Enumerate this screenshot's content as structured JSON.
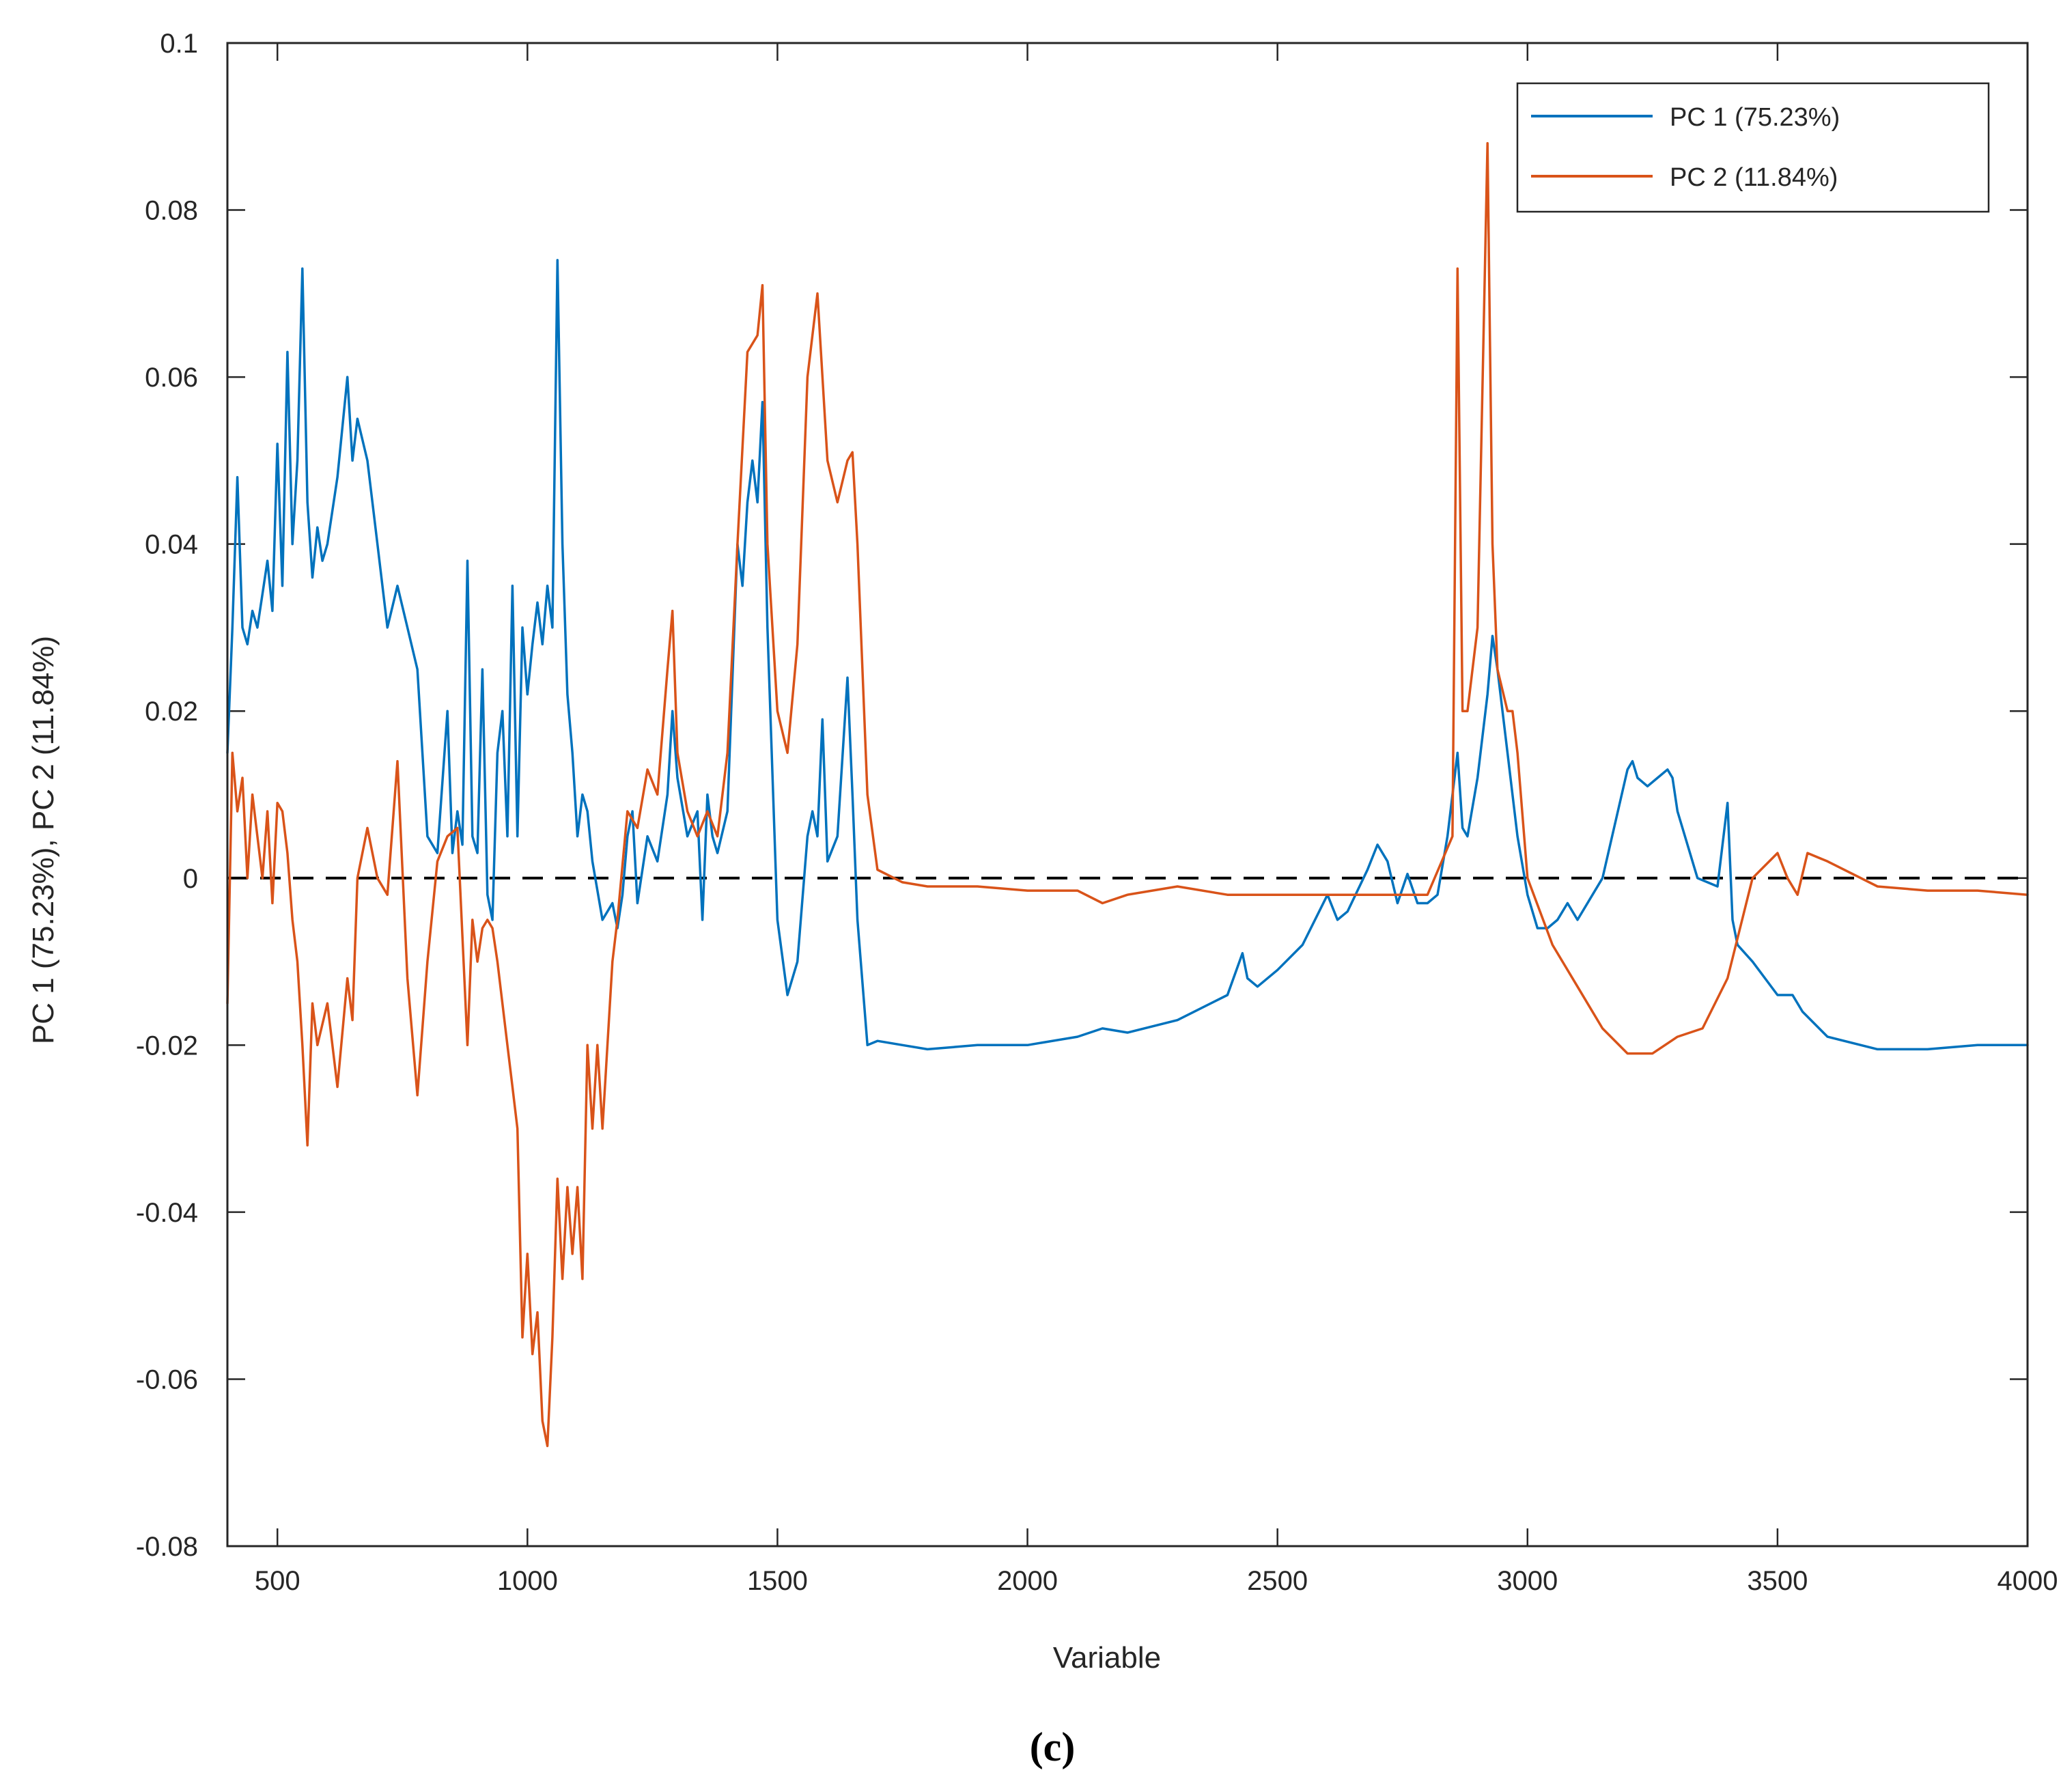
{
  "chart_data": {
    "type": "line",
    "title": "",
    "xlabel": "Variable",
    "ylabel": "PC 1 (75.23%), PC 2 (11.84%)",
    "xlim": [
      400,
      4000
    ],
    "ylim": [
      -0.08,
      0.1
    ],
    "xticks": [
      500,
      1000,
      1500,
      2000,
      2500,
      3000,
      3500,
      4000
    ],
    "yticks": [
      -0.08,
      -0.06,
      -0.04,
      -0.02,
      0,
      0.02,
      0.04,
      0.06,
      0.08,
      0.1
    ],
    "xtick_labels": [
      "500",
      "1000",
      "1500",
      "2000",
      "2500",
      "3000",
      "3500",
      "4000"
    ],
    "ytick_labels": [
      "-0.08",
      "-0.06",
      "-0.04",
      "-0.02",
      "0",
      "0.02",
      "0.04",
      "0.06",
      "0.08",
      "0.1"
    ],
    "zero_line": 0,
    "legend_position": "top-right",
    "caption": "(c)",
    "colors": {
      "pc1": "#0072BD",
      "pc2": "#D95319",
      "zero": "#000000",
      "axis": "#262626"
    },
    "series": [
      {
        "name": "PC 1 (75.23%)",
        "color": "#0072BD",
        "x": [
          400,
          410,
          420,
          430,
          440,
          450,
          460,
          470,
          480,
          490,
          500,
          510,
          520,
          530,
          540,
          550,
          560,
          570,
          580,
          590,
          600,
          620,
          640,
          650,
          660,
          680,
          700,
          720,
          740,
          760,
          780,
          800,
          820,
          840,
          850,
          860,
          870,
          880,
          890,
          900,
          910,
          920,
          930,
          940,
          950,
          960,
          970,
          980,
          990,
          1000,
          1010,
          1020,
          1030,
          1040,
          1050,
          1060,
          1070,
          1080,
          1090,
          1100,
          1110,
          1120,
          1130,
          1150,
          1170,
          1180,
          1190,
          1200,
          1210,
          1220,
          1240,
          1260,
          1280,
          1290,
          1300,
          1320,
          1340,
          1350,
          1360,
          1370,
          1380,
          1400,
          1420,
          1430,
          1440,
          1450,
          1460,
          1470,
          1480,
          1500,
          1520,
          1540,
          1560,
          1570,
          1580,
          1590,
          1600,
          1620,
          1640,
          1650,
          1660,
          1680,
          1700,
          1750,
          1800,
          1900,
          2000,
          2100,
          2150,
          2200,
          2300,
          2400,
          2430,
          2440,
          2460,
          2500,
          2550,
          2600,
          2620,
          2640,
          2680,
          2700,
          2720,
          2740,
          2760,
          2780,
          2800,
          2820,
          2840,
          2860,
          2870,
          2880,
          2900,
          2920,
          2930,
          2940,
          2960,
          2980,
          3000,
          3020,
          3040,
          3060,
          3080,
          3100,
          3150,
          3200,
          3210,
          3220,
          3240,
          3260,
          3280,
          3290,
          3300,
          3340,
          3380,
          3400,
          3410,
          3420,
          3450,
          3500,
          3530,
          3550,
          3600,
          3700,
          3800,
          3900,
          4000
        ],
        "values": [
          0.015,
          0.03,
          0.048,
          0.03,
          0.028,
          0.032,
          0.03,
          0.034,
          0.038,
          0.032,
          0.052,
          0.035,
          0.063,
          0.04,
          0.05,
          0.073,
          0.045,
          0.036,
          0.042,
          0.038,
          0.04,
          0.048,
          0.06,
          0.05,
          0.055,
          0.05,
          0.04,
          0.03,
          0.035,
          0.03,
          0.025,
          0.005,
          0.003,
          0.02,
          0.003,
          0.008,
          0.004,
          0.038,
          0.005,
          0.003,
          0.025,
          -0.002,
          -0.005,
          0.015,
          0.02,
          0.005,
          0.035,
          0.005,
          0.03,
          0.022,
          0.028,
          0.033,
          0.028,
          0.035,
          0.03,
          0.074,
          0.04,
          0.022,
          0.015,
          0.005,
          0.01,
          0.008,
          0.002,
          -0.005,
          -0.003,
          -0.006,
          -0.002,
          0.005,
          0.008,
          -0.003,
          0.005,
          0.002,
          0.01,
          0.02,
          0.012,
          0.005,
          0.008,
          -0.005,
          0.01,
          0.005,
          0.003,
          0.008,
          0.04,
          0.035,
          0.045,
          0.05,
          0.045,
          0.057,
          0.03,
          -0.005,
          -0.014,
          -0.01,
          0.005,
          0.008,
          0.005,
          0.019,
          0.002,
          0.005,
          0.024,
          0.01,
          -0.005,
          -0.02,
          -0.0195,
          -0.02,
          -0.0205,
          -0.02,
          -0.02,
          -0.019,
          -0.018,
          -0.0185,
          -0.017,
          -0.014,
          -0.009,
          -0.012,
          -0.013,
          -0.011,
          -0.008,
          -0.002,
          -0.005,
          -0.004,
          0.001,
          0.004,
          0.002,
          -0.003,
          0.0005,
          -0.003,
          -0.003,
          -0.002,
          0.005,
          0.015,
          0.006,
          0.005,
          0.012,
          0.022,
          0.029,
          0.025,
          0.015,
          0.005,
          -0.002,
          -0.006,
          -0.006,
          -0.005,
          -0.003,
          -0.005,
          0.0,
          0.013,
          0.014,
          0.012,
          0.011,
          0.012,
          0.013,
          0.012,
          0.008,
          0.0,
          -0.001,
          0.009,
          -0.005,
          -0.008,
          -0.01,
          -0.014,
          -0.014,
          -0.016,
          -0.019,
          -0.0205,
          -0.0205,
          -0.02,
          -0.02
        ]
      },
      {
        "name": "PC 2 (11.84%)",
        "color": "#D95319",
        "x": [
          400,
          410,
          420,
          430,
          440,
          450,
          460,
          470,
          480,
          490,
          500,
          510,
          520,
          530,
          540,
          550,
          560,
          570,
          580,
          600,
          620,
          640,
          650,
          660,
          680,
          700,
          720,
          740,
          760,
          780,
          800,
          820,
          840,
          860,
          880,
          890,
          900,
          910,
          920,
          930,
          940,
          950,
          960,
          970,
          980,
          990,
          1000,
          1010,
          1020,
          1030,
          1040,
          1050,
          1060,
          1070,
          1080,
          1090,
          1100,
          1110,
          1120,
          1130,
          1140,
          1150,
          1160,
          1170,
          1180,
          1200,
          1220,
          1240,
          1260,
          1280,
          1290,
          1300,
          1320,
          1340,
          1360,
          1380,
          1400,
          1420,
          1440,
          1460,
          1470,
          1480,
          1500,
          1520,
          1540,
          1560,
          1580,
          1600,
          1620,
          1640,
          1650,
          1660,
          1680,
          1700,
          1750,
          1800,
          1900,
          2000,
          2100,
          2150,
          2200,
          2300,
          2400,
          2500,
          2600,
          2700,
          2800,
          2850,
          2860,
          2870,
          2880,
          2900,
          2920,
          2930,
          2940,
          2960,
          2970,
          2980,
          3000,
          3050,
          3100,
          3150,
          3200,
          3250,
          3300,
          3350,
          3400,
          3450,
          3500,
          3520,
          3540,
          3560,
          3600,
          3700,
          3800,
          3900,
          4000
        ],
        "values": [
          -0.015,
          0.015,
          0.008,
          0.012,
          0.0,
          0.01,
          0.005,
          0.0,
          0.008,
          -0.003,
          0.009,
          0.008,
          0.003,
          -0.005,
          -0.01,
          -0.02,
          -0.032,
          -0.015,
          -0.02,
          -0.015,
          -0.025,
          -0.012,
          -0.017,
          0.0,
          0.006,
          0.0,
          -0.002,
          0.014,
          -0.012,
          -0.026,
          -0.01,
          0.002,
          0.005,
          0.006,
          -0.02,
          -0.005,
          -0.01,
          -0.006,
          -0.005,
          -0.006,
          -0.01,
          -0.015,
          -0.02,
          -0.025,
          -0.03,
          -0.055,
          -0.045,
          -0.057,
          -0.052,
          -0.065,
          -0.068,
          -0.055,
          -0.036,
          -0.048,
          -0.037,
          -0.045,
          -0.037,
          -0.048,
          -0.02,
          -0.03,
          -0.02,
          -0.03,
          -0.02,
          -0.01,
          -0.005,
          0.008,
          0.006,
          0.013,
          0.01,
          0.025,
          0.032,
          0.015,
          0.008,
          0.005,
          0.008,
          0.005,
          0.015,
          0.04,
          0.063,
          0.065,
          0.071,
          0.04,
          0.02,
          0.015,
          0.028,
          0.06,
          0.07,
          0.05,
          0.045,
          0.05,
          0.051,
          0.04,
          0.01,
          0.001,
          -0.0005,
          -0.001,
          -0.001,
          -0.0015,
          -0.0015,
          -0.003,
          -0.002,
          -0.001,
          -0.002,
          -0.002,
          -0.002,
          -0.002,
          -0.002,
          0.005,
          0.073,
          0.02,
          0.02,
          0.03,
          0.088,
          0.04,
          0.025,
          0.02,
          0.02,
          0.015,
          0.0,
          -0.008,
          -0.013,
          -0.018,
          -0.021,
          -0.021,
          -0.019,
          -0.018,
          -0.012,
          0.0,
          0.003,
          0.0,
          -0.002,
          0.003,
          0.002,
          -0.001,
          -0.0015,
          -0.0015,
          -0.002
        ]
      }
    ]
  }
}
